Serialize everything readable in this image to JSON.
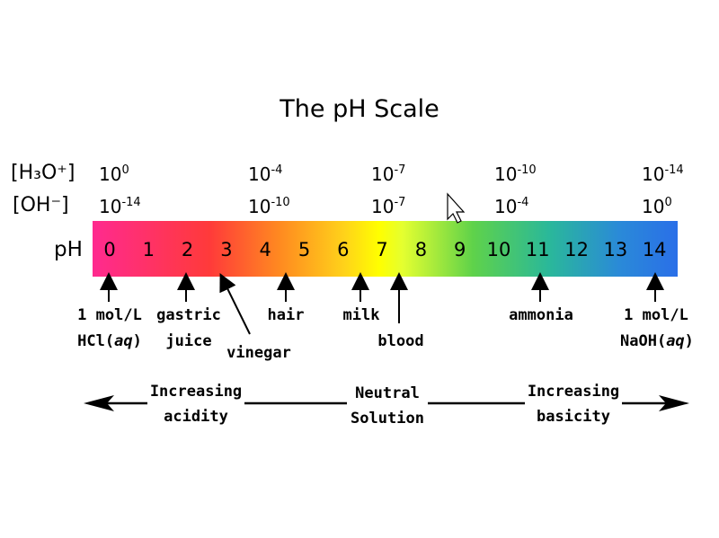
{
  "title": "The pH Scale",
  "rows": {
    "h3o_label": "[H₃O⁺]",
    "oh_label": "[OH⁻]",
    "ph_label": "pH"
  },
  "h3o_values": [
    {
      "base": "10",
      "exp": "0"
    },
    {
      "base": "10",
      "exp": "-4"
    },
    {
      "base": "10",
      "exp": "-7"
    },
    {
      "base": "10",
      "exp": "-10"
    },
    {
      "base": "10",
      "exp": "-14"
    }
  ],
  "oh_values": [
    {
      "base": "10",
      "exp": "-14"
    },
    {
      "base": "10",
      "exp": "-10"
    },
    {
      "base": "10",
      "exp": "-7"
    },
    {
      "base": "10",
      "exp": "-4"
    },
    {
      "base": "10",
      "exp": "0"
    }
  ],
  "ph_numbers": [
    "0",
    "1",
    "2",
    "3",
    "4",
    "5",
    "6",
    "7",
    "8",
    "9",
    "10",
    "11",
    "12",
    "13",
    "14"
  ],
  "substances": {
    "hcl_line1": "1 mol/L",
    "hcl_line2": "HCl(",
    "hcl_aq": "aq",
    "hcl_close": ")",
    "gastric_line1": "gastric",
    "gastric_line2": "juice",
    "vinegar": "vinegar",
    "hair": "hair",
    "milk": "milk",
    "blood": "blood",
    "ammonia": "ammonia",
    "naoh_line1": "1 mol/L",
    "naoh_line2": "NaOH(",
    "naoh_aq": "aq",
    "naoh_close": ")"
  },
  "spectrum": {
    "acid_line1": "Increasing",
    "acid_line2": "acidity",
    "neutral_line1": "Neutral",
    "neutral_line2": "Solution",
    "base_line1": "Increasing",
    "base_line2": "basicity"
  }
}
